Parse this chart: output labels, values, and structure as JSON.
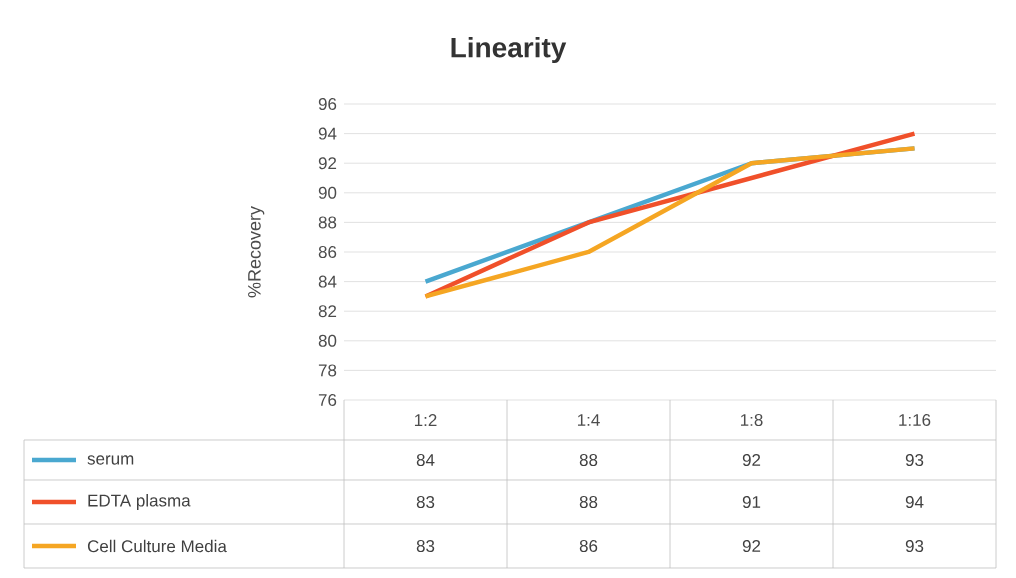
{
  "chart_data": {
    "type": "line",
    "title": "Linearity",
    "ylabel": "%Recovery",
    "categories": [
      "1:2",
      "1:4",
      "1:8",
      "1:16"
    ],
    "series": [
      {
        "name": "serum",
        "color": "#4aa8d0",
        "values": [
          84,
          88,
          92,
          93
        ]
      },
      {
        "name": "EDTA plasma",
        "color": "#f0502a",
        "values": [
          83,
          88,
          91,
          94
        ]
      },
      {
        "name": "Cell Culture Media",
        "color": "#f5a623",
        "values": [
          83,
          86,
          92,
          93
        ]
      }
    ],
    "ylim": [
      76,
      96
    ],
    "yticks": [
      76,
      78,
      80,
      82,
      84,
      86,
      88,
      90,
      92,
      94,
      96
    ],
    "grid": "y",
    "legend": "bottom",
    "data_labels": true,
    "marker": "none",
    "line_style": "solid"
  }
}
